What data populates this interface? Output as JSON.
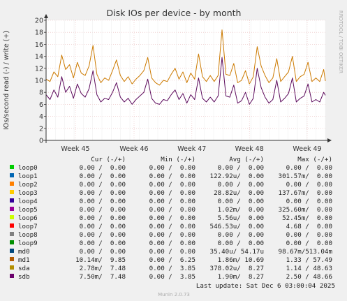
{
  "chart_data": {
    "type": "line",
    "title": "Disk IOs per device - by month",
    "ylabel": "IOs/second read (-) / write (+)",
    "watermark": "RRDTOOL / TOBI OETIKER",
    "ylim": [
      0,
      20
    ],
    "yticks": [
      0,
      2,
      4,
      6,
      8,
      10,
      12,
      14,
      16,
      18,
      20
    ],
    "xlim": [
      0,
      1
    ],
    "xticks": [
      {
        "label": "Week 45",
        "pos": 0.105
      },
      {
        "label": "Week 46",
        "pos": 0.315
      },
      {
        "label": "Week 47",
        "pos": 0.522
      },
      {
        "label": "Week 48",
        "pos": 0.728
      },
      {
        "label": "Week 49",
        "pos": 0.935
      }
    ],
    "grid": true,
    "series": [
      {
        "name": "sda",
        "color": "#cc7a00",
        "x": [
          0.0,
          0.014,
          0.028,
          0.042,
          0.056,
          0.07,
          0.084,
          0.098,
          0.112,
          0.126,
          0.14,
          0.154,
          0.168,
          0.182,
          0.196,
          0.21,
          0.224,
          0.238,
          0.252,
          0.266,
          0.28,
          0.294,
          0.308,
          0.322,
          0.336,
          0.35,
          0.364,
          0.378,
          0.392,
          0.406,
          0.42,
          0.434,
          0.448,
          0.462,
          0.476,
          0.49,
          0.504,
          0.518,
          0.532,
          0.546,
          0.56,
          0.574,
          0.588,
          0.602,
          0.616,
          0.63,
          0.644,
          0.658,
          0.672,
          0.686,
          0.7,
          0.714,
          0.728,
          0.742,
          0.756,
          0.77,
          0.784,
          0.798,
          0.812,
          0.826,
          0.84,
          0.854,
          0.868,
          0.882,
          0.896,
          0.91,
          0.924,
          0.938,
          0.952,
          0.966,
          0.98,
          0.994,
          1.0
        ],
        "values": [
          10.2,
          9.8,
          11.4,
          10.6,
          14.2,
          11.8,
          12.6,
          10.4,
          13.0,
          11.2,
          10.8,
          12.4,
          15.8,
          11.0,
          9.6,
          10.4,
          10.0,
          11.6,
          13.4,
          10.8,
          9.8,
          10.6,
          9.4,
          10.2,
          10.8,
          11.6,
          13.8,
          10.4,
          9.6,
          9.2,
          10.0,
          9.8,
          11.0,
          12.0,
          10.2,
          11.4,
          9.6,
          11.2,
          10.2,
          14.4,
          10.6,
          9.8,
          10.8,
          9.8,
          10.8,
          18.4,
          11.0,
          10.8,
          12.8,
          9.6,
          10.0,
          11.6,
          9.4,
          10.6,
          15.6,
          12.4,
          10.8,
          9.6,
          10.4,
          13.6,
          9.8,
          10.6,
          11.4,
          14.0,
          9.8,
          10.6,
          11.0,
          13.0,
          9.8,
          10.4,
          9.8,
          11.8,
          9.9
        ]
      },
      {
        "name": "sdb",
        "color": "#5c0a5c",
        "x": [
          0.0,
          0.014,
          0.028,
          0.042,
          0.056,
          0.07,
          0.084,
          0.098,
          0.112,
          0.126,
          0.14,
          0.154,
          0.168,
          0.182,
          0.196,
          0.21,
          0.224,
          0.238,
          0.252,
          0.266,
          0.28,
          0.294,
          0.308,
          0.322,
          0.336,
          0.35,
          0.364,
          0.378,
          0.392,
          0.406,
          0.42,
          0.434,
          0.448,
          0.462,
          0.476,
          0.49,
          0.504,
          0.518,
          0.532,
          0.546,
          0.56,
          0.574,
          0.588,
          0.602,
          0.616,
          0.63,
          0.644,
          0.658,
          0.672,
          0.686,
          0.7,
          0.714,
          0.728,
          0.742,
          0.756,
          0.77,
          0.784,
          0.798,
          0.812,
          0.826,
          0.84,
          0.854,
          0.868,
          0.882,
          0.896,
          0.91,
          0.924,
          0.938,
          0.952,
          0.966,
          0.98,
          0.994,
          1.0
        ],
        "values": [
          7.6,
          6.8,
          8.4,
          7.2,
          10.6,
          8.0,
          9.0,
          7.0,
          9.4,
          7.8,
          7.2,
          8.6,
          11.6,
          7.6,
          6.4,
          7.0,
          6.8,
          8.0,
          9.6,
          7.2,
          6.4,
          7.0,
          6.0,
          6.8,
          7.4,
          8.0,
          10.2,
          7.0,
          6.2,
          6.0,
          6.8,
          6.6,
          7.6,
          8.4,
          6.8,
          7.8,
          6.2,
          7.6,
          6.8,
          10.4,
          7.0,
          6.4,
          7.2,
          6.4,
          7.4,
          13.8,
          7.4,
          7.2,
          9.2,
          6.2,
          6.6,
          8.0,
          6.0,
          7.0,
          12.0,
          8.8,
          7.2,
          6.2,
          6.8,
          10.0,
          6.4,
          7.0,
          7.8,
          10.4,
          6.4,
          7.0,
          7.4,
          9.4,
          6.4,
          6.8,
          6.4,
          8.0,
          7.5
        ]
      }
    ]
  },
  "legend": {
    "headers": {
      "cur": "Cur (-/+)",
      "min": "Min (-/+)",
      "avg": "Avg (-/+)",
      "max": "Max (-/+)"
    },
    "rows": [
      {
        "name": "loop0",
        "color": "#00cc00",
        "cur": "0.00 /  0.00",
        "min": "0.00 /  0.00",
        "avg": "0.00 /  0.00",
        "max": "0.00 /  0.00"
      },
      {
        "name": "loop1",
        "color": "#0066b3",
        "cur": "0.00 /  0.00",
        "min": "0.00 /  0.00",
        "avg": "122.92u/  0.00",
        "max": "301.57m/  0.00"
      },
      {
        "name": "loop2",
        "color": "#ff8000",
        "cur": "0.00 /  0.00",
        "min": "0.00 /  0.00",
        "avg": "0.00 /  0.00",
        "max": "0.00 /  0.00"
      },
      {
        "name": "loop3",
        "color": "#ffcc00",
        "cur": "0.00 /  0.00",
        "min": "0.00 /  0.00",
        "avg": "28.82u/  0.00",
        "max": "137.67m/  0.00"
      },
      {
        "name": "loop4",
        "color": "#330099",
        "cur": "0.00 /  0.00",
        "min": "0.00 /  0.00",
        "avg": "0.00 /  0.00",
        "max": "0.00 /  0.00"
      },
      {
        "name": "loop5",
        "color": "#990099",
        "cur": "0.00 /  0.00",
        "min": "0.00 /  0.00",
        "avg": "1.02m/  0.00",
        "max": "325.60m/  0.00"
      },
      {
        "name": "loop6",
        "color": "#ccff00",
        "cur": "0.00 /  0.00",
        "min": "0.00 /  0.00",
        "avg": "5.56u/  0.00",
        "max": "52.45m/  0.00"
      },
      {
        "name": "loop7",
        "color": "#ff0000",
        "cur": "0.00 /  0.00",
        "min": "0.00 /  0.00",
        "avg": "546.53u/  0.00",
        "max": "4.68 /  0.00"
      },
      {
        "name": "loop8",
        "color": "#808080",
        "cur": "0.00 /  0.00",
        "min": "0.00 /  0.00",
        "avg": "0.00 /  0.00",
        "max": "0.00 /  0.00"
      },
      {
        "name": "loop9",
        "color": "#008f00",
        "cur": "0.00 /  0.00",
        "min": "0.00 /  0.00",
        "avg": "0.00 /  0.00",
        "max": "0.00 /  0.00"
      },
      {
        "name": "md0",
        "color": "#00487d",
        "cur": "0.00 /  0.00",
        "min": "0.00 /  0.00",
        "avg": "35.40u/ 54.17u",
        "max": "98.67m/513.04m"
      },
      {
        "name": "md1",
        "color": "#b35a00",
        "cur": "10.14m/  9.85",
        "min": "0.00 /  6.25",
        "avg": "1.86m/ 10.69",
        "max": "1.33 / 57.49"
      },
      {
        "name": "sda",
        "color": "#b38f00",
        "cur": "2.78m/  7.48",
        "min": "0.00 /  3.85",
        "avg": "378.02u/  8.27",
        "max": "1.14 / 48.63"
      },
      {
        "name": "sdb",
        "color": "#6b006b",
        "cur": "7.50m/  7.48",
        "min": "0.00 /  3.85",
        "avg": "1.90m/  8.27",
        "max": "2.50 / 48.66"
      }
    ]
  },
  "last_update": "Last update:  Sat Dec  6 03:00:04 2025",
  "footer": "Munin 2.0.73"
}
